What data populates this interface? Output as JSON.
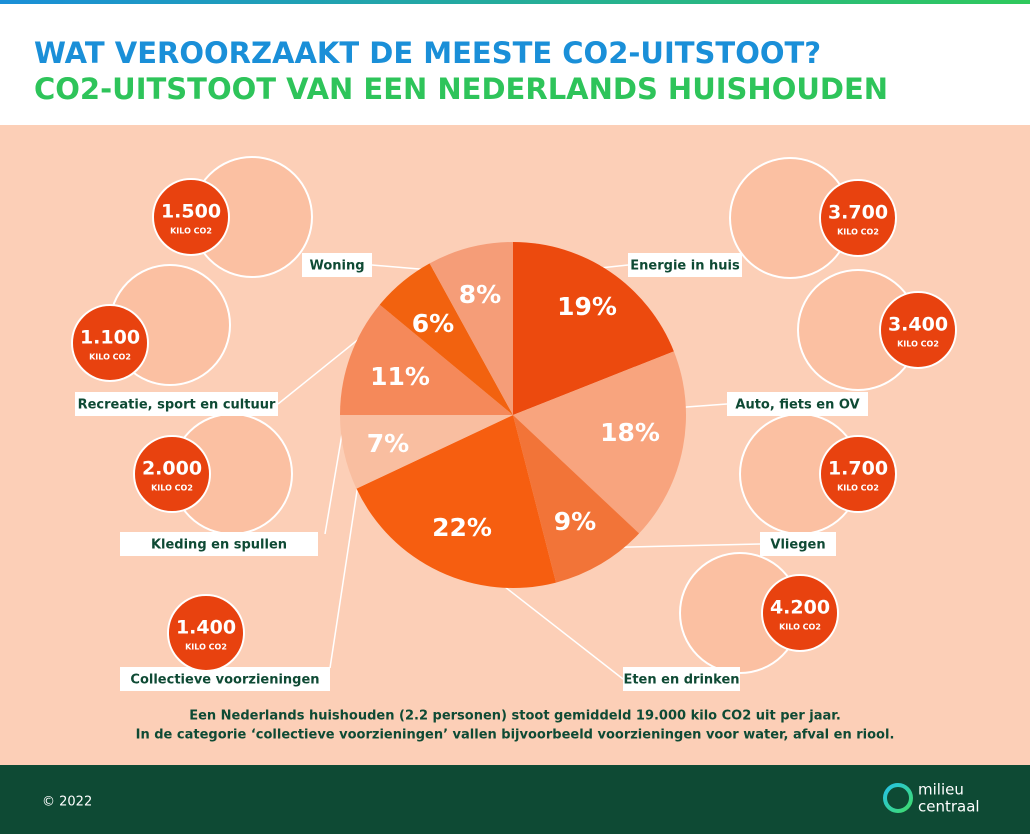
{
  "chart_data": {
    "type": "pie",
    "title": "WAT VEROORZAAKT DE MEESTE CO2-UITSTOOT?",
    "subtitle": "CO2-UITSTOOT VAN EEN NEDERLANDS HUISHOUDEN",
    "categories": [
      "Energie in huis",
      "Auto, fiets en OV",
      "Vliegen",
      "Eten en drinken",
      "Collectieve voorzieningen",
      "Kleding en spullen",
      "Recreatie, sport en cultuur",
      "Woning"
    ],
    "values": [
      19,
      18,
      9,
      22,
      7,
      11,
      6,
      8
    ],
    "value_labels": [
      "19%",
      "18%",
      "9%",
      "22%",
      "7%",
      "11%",
      "6%",
      "8%"
    ],
    "colors": [
      "#ec4a0e",
      "#f8a47e",
      "#f27438",
      "#f65e10",
      "#f9bea0",
      "#f5895a",
      "#f2620f",
      "#f59d78"
    ],
    "emissions": {
      "name": "KILO CO2",
      "values": [
        3700,
        3400,
        1700,
        4200,
        1400,
        2000,
        1100,
        1500
      ],
      "value_labels": [
        "3.700",
        "3.400",
        "1.700",
        "4.200",
        "1.400",
        "2.000",
        "1.100",
        "1.500"
      ]
    }
  },
  "footnotes": [
    "Een Nederlands huishouden (2.2 personen) stoot gemiddeld 19.000 kilo CO2 uit per jaar.",
    "In de categorie ‘collectieve voorzieningen’ vallen bijvoorbeeld voorzieningen voor water, afval en riool."
  ],
  "copyright": "© 2022",
  "logo": [
    "milieu",
    "centraal"
  ]
}
